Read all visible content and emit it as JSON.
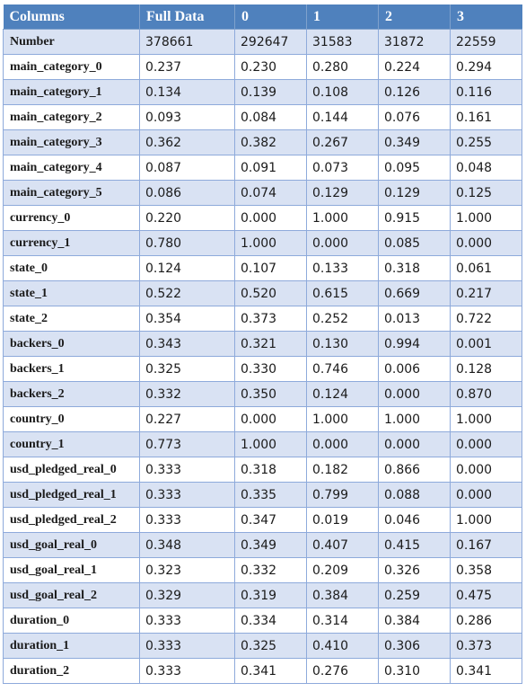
{
  "table": {
    "headers": [
      "Columns",
      "Full Data",
      "0",
      "1",
      "2",
      "3"
    ],
    "rows": [
      [
        "Number",
        "378661",
        "292647",
        "31583",
        "31872",
        "22559"
      ],
      [
        "main_category_0",
        "0.237",
        "0.230",
        "0.280",
        "0.224",
        "0.294"
      ],
      [
        "main_category_1",
        "0.134",
        "0.139",
        "0.108",
        "0.126",
        "0.116"
      ],
      [
        "main_category_2",
        "0.093",
        "0.084",
        "0.144",
        "0.076",
        "0.161"
      ],
      [
        "main_category_3",
        "0.362",
        "0.382",
        "0.267",
        "0.349",
        "0.255"
      ],
      [
        "main_category_4",
        "0.087",
        "0.091",
        "0.073",
        "0.095",
        "0.048"
      ],
      [
        "main_category_5",
        "0.086",
        "0.074",
        "0.129",
        "0.129",
        "0.125"
      ],
      [
        "currency_0",
        "0.220",
        "0.000",
        "1.000",
        "0.915",
        "1.000"
      ],
      [
        "currency_1",
        "0.780",
        "1.000",
        "0.000",
        "0.085",
        "0.000"
      ],
      [
        "state_0",
        "0.124",
        "0.107",
        "0.133",
        "0.318",
        "0.061"
      ],
      [
        "state_1",
        "0.522",
        "0.520",
        "0.615",
        "0.669",
        "0.217"
      ],
      [
        "state_2",
        "0.354",
        "0.373",
        "0.252",
        "0.013",
        "0.722"
      ],
      [
        "backers_0",
        "0.343",
        "0.321",
        "0.130",
        "0.994",
        "0.001"
      ],
      [
        "backers_1",
        "0.325",
        "0.330",
        "0.746",
        "0.006",
        "0.128"
      ],
      [
        "backers_2",
        "0.332",
        "0.350",
        "0.124",
        "0.000",
        "0.870"
      ],
      [
        "country_0",
        "0.227",
        "0.000",
        "1.000",
        "1.000",
        "1.000"
      ],
      [
        "country_1",
        "0.773",
        "1.000",
        "0.000",
        "0.000",
        "0.000"
      ],
      [
        "usd_pledged_real_0",
        "0.333",
        "0.318",
        "0.182",
        "0.866",
        "0.000"
      ],
      [
        "usd_pledged_real_1",
        "0.333",
        "0.335",
        "0.799",
        "0.088",
        "0.000"
      ],
      [
        "usd_pledged_real_2",
        "0.333",
        "0.347",
        "0.019",
        "0.046",
        "1.000"
      ],
      [
        "usd_goal_real_0",
        "0.348",
        "0.349",
        "0.407",
        "0.415",
        "0.167"
      ],
      [
        "usd_goal_real_1",
        "0.323",
        "0.332",
        "0.209",
        "0.326",
        "0.358"
      ],
      [
        "usd_goal_real_2",
        "0.329",
        "0.319",
        "0.384",
        "0.259",
        "0.475"
      ],
      [
        "duration_0",
        "0.333",
        "0.334",
        "0.314",
        "0.384",
        "0.286"
      ],
      [
        "duration_1",
        "0.333",
        "0.325",
        "0.410",
        "0.306",
        "0.373"
      ],
      [
        "duration_2",
        "0.333",
        "0.341",
        "0.276",
        "0.310",
        "0.341"
      ]
    ]
  },
  "colors": {
    "header_bg": "#4f81bd",
    "header_text": "#ffffff",
    "band_bg": "#d9e2f3",
    "border": "#8eaadb"
  }
}
